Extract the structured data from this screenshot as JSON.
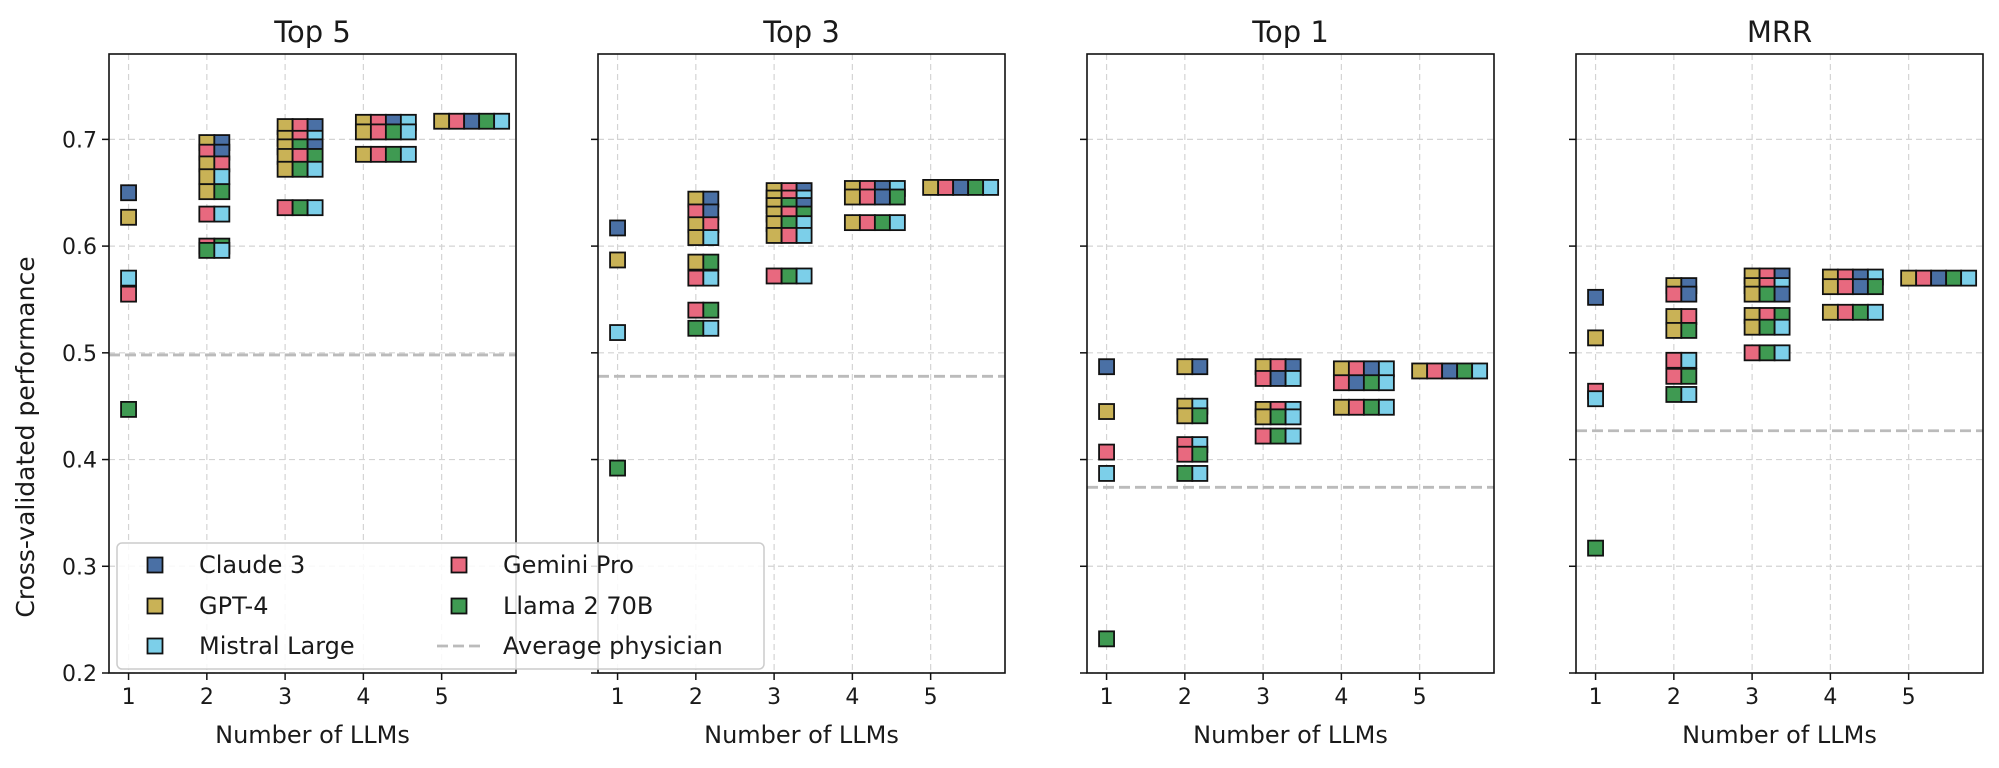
{
  "ylabel": "Cross-validated performance",
  "chart_data": {
    "type": "scatter",
    "ylim": [
      0.2,
      0.78
    ],
    "xlim": [
      0.75,
      5.95
    ],
    "yticks": [
      0.2,
      0.3,
      0.4,
      0.5,
      0.6,
      0.7
    ],
    "ytick_labels": [
      "0.2",
      "0.3",
      "0.4",
      "0.5",
      "0.6",
      "0.7"
    ],
    "xticks": [
      1,
      2,
      3,
      4,
      5
    ],
    "xtick_labels": [
      "1",
      "2",
      "3",
      "4",
      "5"
    ],
    "grid": true,
    "legend_position": "lower-left",
    "colors": {
      "Claude 3": "#4a70a5",
      "GPT-4": "#c9b256",
      "Mistral Large": "#7ccfe9",
      "Gemini Pro": "#e8697f",
      "Llama 2 70B": "#3f9a52",
      "Average physician": "#bbbbbb"
    },
    "legend": [
      {
        "label": "Claude 3",
        "marker": "square"
      },
      {
        "label": "GPT-4",
        "marker": "square"
      },
      {
        "label": "Mistral Large",
        "marker": "square"
      },
      {
        "label": "Gemini Pro",
        "marker": "square"
      },
      {
        "label": "Llama 2 70B",
        "marker": "square"
      },
      {
        "label": "Average physician",
        "marker": "dashed-line"
      }
    ],
    "panels": [
      {
        "title": "Top 5",
        "xlabel": "Number of LLMs",
        "average_physician": 0.498,
        "points": [
          {
            "x": 1,
            "y": 0.65,
            "models": [
              "Claude 3"
            ]
          },
          {
            "x": 1,
            "y": 0.627,
            "models": [
              "GPT-4"
            ]
          },
          {
            "x": 1,
            "y": 0.57,
            "models": [
              "Mistral Large"
            ]
          },
          {
            "x": 1,
            "y": 0.555,
            "models": [
              "Gemini Pro"
            ]
          },
          {
            "x": 1,
            "y": 0.447,
            "models": [
              "Llama 2 70B"
            ]
          },
          {
            "x": 2,
            "y": 0.697,
            "models": [
              "GPT-4",
              "Claude 3"
            ]
          },
          {
            "x": 2,
            "y": 0.688,
            "models": [
              "Gemini Pro",
              "Claude 3"
            ]
          },
          {
            "x": 2,
            "y": 0.677,
            "models": [
              "GPT-4",
              "Gemini Pro"
            ]
          },
          {
            "x": 2,
            "y": 0.665,
            "models": [
              "GPT-4",
              "Mistral Large"
            ]
          },
          {
            "x": 2,
            "y": 0.651,
            "models": [
              "GPT-4",
              "Llama 2 70B"
            ]
          },
          {
            "x": 2,
            "y": 0.63,
            "models": [
              "Gemini Pro",
              "Mistral Large"
            ]
          },
          {
            "x": 2,
            "y": 0.6,
            "models": [
              "Gemini Pro",
              "Llama 2 70B"
            ]
          },
          {
            "x": 2,
            "y": 0.596,
            "models": [
              "Llama 2 70B",
              "Mistral Large"
            ]
          },
          {
            "x": 3,
            "y": 0.712,
            "models": [
              "GPT-4",
              "Gemini Pro",
              "Claude 3"
            ]
          },
          {
            "x": 3,
            "y": 0.701,
            "models": [
              "GPT-4",
              "Gemini Pro",
              "Mistral Large"
            ]
          },
          {
            "x": 3,
            "y": 0.693,
            "models": [
              "GPT-4",
              "Llama 2 70B",
              "Claude 3"
            ]
          },
          {
            "x": 3,
            "y": 0.684,
            "models": [
              "GPT-4",
              "Gemini Pro",
              "Llama 2 70B"
            ]
          },
          {
            "x": 3,
            "y": 0.672,
            "models": [
              "GPT-4",
              "Llama 2 70B",
              "Mistral Large"
            ]
          },
          {
            "x": 3,
            "y": 0.636,
            "models": [
              "Gemini Pro",
              "Llama 2 70B",
              "Mistral Large"
            ]
          },
          {
            "x": 4,
            "y": 0.716,
            "models": [
              "GPT-4",
              "Gemini Pro",
              "Claude 3",
              "Mistral Large"
            ]
          },
          {
            "x": 4,
            "y": 0.707,
            "models": [
              "GPT-4",
              "Gemini Pro",
              "Llama 2 70B",
              "Mistral Large"
            ]
          },
          {
            "x": 4,
            "y": 0.686,
            "models": [
              "GPT-4",
              "Gemini Pro",
              "Llama 2 70B",
              "Mistral Large"
            ]
          },
          {
            "x": 5,
            "y": 0.717,
            "models": [
              "GPT-4",
              "Gemini Pro",
              "Claude 3",
              "Llama 2 70B",
              "Mistral Large"
            ]
          }
        ]
      },
      {
        "title": "Top 3",
        "xlabel": "Number of LLMs",
        "average_physician": 0.478,
        "points": [
          {
            "x": 1,
            "y": 0.617,
            "models": [
              "Claude 3"
            ]
          },
          {
            "x": 1,
            "y": 0.587,
            "models": [
              "GPT-4"
            ]
          },
          {
            "x": 1,
            "y": 0.519,
            "models": [
              "Mistral Large"
            ]
          },
          {
            "x": 1,
            "y": 0.392,
            "models": [
              "Llama 2 70B"
            ]
          },
          {
            "x": 2,
            "y": 0.644,
            "models": [
              "GPT-4",
              "Claude 3"
            ]
          },
          {
            "x": 2,
            "y": 0.632,
            "models": [
              "Gemini Pro",
              "Claude 3"
            ]
          },
          {
            "x": 2,
            "y": 0.62,
            "models": [
              "GPT-4",
              "Gemini Pro"
            ]
          },
          {
            "x": 2,
            "y": 0.608,
            "models": [
              "GPT-4",
              "Mistral Large"
            ]
          },
          {
            "x": 2,
            "y": 0.585,
            "models": [
              "GPT-4",
              "Llama 2 70B"
            ]
          },
          {
            "x": 2,
            "y": 0.57,
            "models": [
              "Gemini Pro",
              "Mistral Large"
            ]
          },
          {
            "x": 2,
            "y": 0.54,
            "models": [
              "Gemini Pro",
              "Llama 2 70B"
            ]
          },
          {
            "x": 2,
            "y": 0.523,
            "models": [
              "Llama 2 70B",
              "Mistral Large"
            ]
          },
          {
            "x": 3,
            "y": 0.652,
            "models": [
              "GPT-4",
              "Gemini Pro",
              "Claude 3"
            ]
          },
          {
            "x": 3,
            "y": 0.645,
            "models": [
              "GPT-4",
              "Gemini Pro",
              "Mistral Large"
            ]
          },
          {
            "x": 3,
            "y": 0.638,
            "models": [
              "GPT-4",
              "Llama 2 70B",
              "Claude 3"
            ]
          },
          {
            "x": 3,
            "y": 0.63,
            "models": [
              "GPT-4",
              "Gemini Pro",
              "Llama 2 70B"
            ]
          },
          {
            "x": 3,
            "y": 0.621,
            "models": [
              "GPT-4",
              "Llama 2 70B",
              "Mistral Large"
            ]
          },
          {
            "x": 3,
            "y": 0.61,
            "models": [
              "GPT-4",
              "Gemini Pro",
              "Mistral Large"
            ]
          },
          {
            "x": 3,
            "y": 0.572,
            "models": [
              "Gemini Pro",
              "Llama 2 70B",
              "Mistral Large"
            ]
          },
          {
            "x": 4,
            "y": 0.654,
            "models": [
              "GPT-4",
              "Gemini Pro",
              "Claude 3",
              "Mistral Large"
            ]
          },
          {
            "x": 4,
            "y": 0.646,
            "models": [
              "GPT-4",
              "Gemini Pro",
              "Claude 3",
              "Llama 2 70B"
            ]
          },
          {
            "x": 4,
            "y": 0.622,
            "models": [
              "GPT-4",
              "Gemini Pro",
              "Llama 2 70B",
              "Mistral Large"
            ]
          },
          {
            "x": 5,
            "y": 0.655,
            "models": [
              "GPT-4",
              "Gemini Pro",
              "Claude 3",
              "Llama 2 70B",
              "Mistral Large"
            ]
          }
        ]
      },
      {
        "title": "Top 1",
        "xlabel": "Number of LLMs",
        "average_physician": 0.374,
        "points": [
          {
            "x": 1,
            "y": 0.487,
            "models": [
              "Claude 3"
            ]
          },
          {
            "x": 1,
            "y": 0.445,
            "models": [
              "GPT-4"
            ]
          },
          {
            "x": 1,
            "y": 0.407,
            "models": [
              "Gemini Pro"
            ]
          },
          {
            "x": 1,
            "y": 0.387,
            "models": [
              "Mistral Large"
            ]
          },
          {
            "x": 1,
            "y": 0.232,
            "models": [
              "Llama 2 70B"
            ]
          },
          {
            "x": 2,
            "y": 0.487,
            "models": [
              "GPT-4",
              "Claude 3"
            ]
          },
          {
            "x": 2,
            "y": 0.45,
            "models": [
              "GPT-4",
              "Mistral Large"
            ]
          },
          {
            "x": 2,
            "y": 0.441,
            "models": [
              "GPT-4",
              "Llama 2 70B"
            ]
          },
          {
            "x": 2,
            "y": 0.414,
            "models": [
              "Gemini Pro",
              "Mistral Large"
            ]
          },
          {
            "x": 2,
            "y": 0.405,
            "models": [
              "Gemini Pro",
              "Llama 2 70B"
            ]
          },
          {
            "x": 2,
            "y": 0.387,
            "models": [
              "Llama 2 70B",
              "Mistral Large"
            ]
          },
          {
            "x": 3,
            "y": 0.487,
            "models": [
              "GPT-4",
              "Gemini Pro",
              "Claude 3"
            ]
          },
          {
            "x": 3,
            "y": 0.476,
            "models": [
              "Gemini Pro",
              "Claude 3",
              "Mistral Large"
            ]
          },
          {
            "x": 3,
            "y": 0.447,
            "models": [
              "GPT-4",
              "Gemini Pro",
              "Mistral Large"
            ]
          },
          {
            "x": 3,
            "y": 0.44,
            "models": [
              "GPT-4",
              "Llama 2 70B",
              "Mistral Large"
            ]
          },
          {
            "x": 3,
            "y": 0.422,
            "models": [
              "Gemini Pro",
              "Llama 2 70B",
              "Mistral Large"
            ]
          },
          {
            "x": 4,
            "y": 0.485,
            "models": [
              "GPT-4",
              "Gemini Pro",
              "Claude 3",
              "Mistral Large"
            ]
          },
          {
            "x": 4,
            "y": 0.472,
            "models": [
              "Gemini Pro",
              "Claude 3",
              "Llama 2 70B",
              "Mistral Large"
            ]
          },
          {
            "x": 4,
            "y": 0.449,
            "models": [
              "GPT-4",
              "Gemini Pro",
              "Llama 2 70B",
              "Mistral Large"
            ]
          },
          {
            "x": 5,
            "y": 0.483,
            "models": [
              "GPT-4",
              "Gemini Pro",
              "Claude 3",
              "Llama 2 70B",
              "Mistral Large"
            ]
          }
        ]
      },
      {
        "title": "MRR",
        "xlabel": "Number of LLMs",
        "average_physician": 0.427,
        "points": [
          {
            "x": 1,
            "y": 0.552,
            "models": [
              "Claude 3"
            ]
          },
          {
            "x": 1,
            "y": 0.514,
            "models": [
              "GPT-4"
            ]
          },
          {
            "x": 1,
            "y": 0.464,
            "models": [
              "Gemini Pro"
            ]
          },
          {
            "x": 1,
            "y": 0.457,
            "models": [
              "Mistral Large"
            ]
          },
          {
            "x": 1,
            "y": 0.317,
            "models": [
              "Llama 2 70B"
            ]
          },
          {
            "x": 2,
            "y": 0.563,
            "models": [
              "GPT-4",
              "Claude 3"
            ]
          },
          {
            "x": 2,
            "y": 0.555,
            "models": [
              "Gemini Pro",
              "Claude 3"
            ]
          },
          {
            "x": 2,
            "y": 0.534,
            "models": [
              "GPT-4",
              "Gemini Pro"
            ]
          },
          {
            "x": 2,
            "y": 0.521,
            "models": [
              "GPT-4",
              "Llama 2 70B"
            ]
          },
          {
            "x": 2,
            "y": 0.493,
            "models": [
              "Gemini Pro",
              "Mistral Large"
            ]
          },
          {
            "x": 2,
            "y": 0.478,
            "models": [
              "Gemini Pro",
              "Llama 2 70B"
            ]
          },
          {
            "x": 2,
            "y": 0.461,
            "models": [
              "Llama 2 70B",
              "Mistral Large"
            ]
          },
          {
            "x": 3,
            "y": 0.572,
            "models": [
              "GPT-4",
              "Gemini Pro",
              "Claude 3"
            ]
          },
          {
            "x": 3,
            "y": 0.563,
            "models": [
              "GPT-4",
              "Gemini Pro",
              "Mistral Large"
            ]
          },
          {
            "x": 3,
            "y": 0.555,
            "models": [
              "GPT-4",
              "Llama 2 70B",
              "Claude 3"
            ]
          },
          {
            "x": 3,
            "y": 0.535,
            "models": [
              "GPT-4",
              "Gemini Pro",
              "Llama 2 70B"
            ]
          },
          {
            "x": 3,
            "y": 0.524,
            "models": [
              "GPT-4",
              "Llama 2 70B",
              "Mistral Large"
            ]
          },
          {
            "x": 3,
            "y": 0.5,
            "models": [
              "Gemini Pro",
              "Llama 2 70B",
              "Mistral Large"
            ]
          },
          {
            "x": 4,
            "y": 0.571,
            "models": [
              "GPT-4",
              "Gemini Pro",
              "Claude 3",
              "Mistral Large"
            ]
          },
          {
            "x": 4,
            "y": 0.562,
            "models": [
              "GPT-4",
              "Gemini Pro",
              "Claude 3",
              "Llama 2 70B"
            ]
          },
          {
            "x": 4,
            "y": 0.538,
            "models": [
              "GPT-4",
              "Gemini Pro",
              "Llama 2 70B",
              "Mistral Large"
            ]
          },
          {
            "x": 5,
            "y": 0.57,
            "models": [
              "GPT-4",
              "Gemini Pro",
              "Claude 3",
              "Llama 2 70B",
              "Mistral Large"
            ]
          }
        ]
      }
    ]
  }
}
